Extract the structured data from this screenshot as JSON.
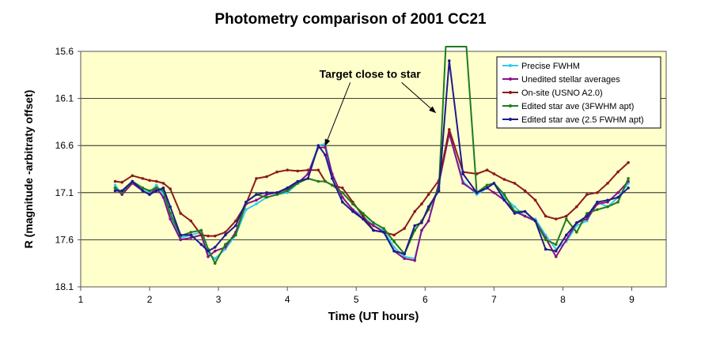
{
  "chart_data": {
    "type": "line",
    "title": "Photometry comparison of 2001 CC21",
    "xlabel": "Time (UT hours)",
    "ylabel": "R (magnitude -arbitraty offset)",
    "xlim": [
      1,
      9.5
    ],
    "ylim": [
      15.6,
      18.1
    ],
    "y_inverted": true,
    "xticks": [
      1,
      2,
      3,
      4,
      5,
      6,
      7,
      8,
      9
    ],
    "yticks": [
      15.6,
      16.1,
      16.6,
      17.1,
      17.6,
      18.1
    ],
    "yticklabels": [
      "15.6",
      "16.1",
      "16.6",
      "17.1",
      "17.6",
      "18.1"
    ],
    "grid": "horizontal",
    "legend_position": "top-right",
    "plot_background": "#ffffcc",
    "annotation": {
      "text": "Target close to star",
      "text_at": [
        5.2,
        15.88
      ],
      "arrows": [
        [
          4.55,
          16.6
        ],
        [
          6.15,
          16.25
        ]
      ]
    },
    "series": [
      {
        "name": "Precise FWHM",
        "color": "#33ccee",
        "x": [
          1.5,
          1.6,
          1.75,
          1.9,
          2.0,
          2.1,
          2.2,
          2.3,
          2.45,
          2.6,
          2.75,
          2.85,
          2.95,
          3.1,
          3.25,
          3.4,
          3.55,
          3.7,
          3.85,
          4.0,
          4.15,
          4.3,
          4.45,
          4.55,
          4.65,
          4.8,
          4.95,
          5.1,
          5.25,
          5.4,
          5.55,
          5.7,
          5.85,
          5.95,
          6.05,
          6.2,
          6.35,
          6.55,
          6.75,
          6.9,
          7.0,
          7.15,
          7.3,
          7.45,
          7.6,
          7.75,
          7.9,
          8.05,
          8.2,
          8.35,
          8.5,
          8.65,
          8.8,
          8.95
        ],
        "y": [
          17.02,
          17.12,
          16.98,
          17.05,
          17.1,
          17.02,
          17.12,
          17.35,
          17.58,
          17.55,
          17.52,
          17.75,
          17.8,
          17.7,
          17.55,
          17.28,
          17.22,
          17.15,
          17.12,
          17.1,
          17.0,
          16.9,
          16.6,
          16.58,
          16.9,
          17.15,
          17.28,
          17.35,
          17.45,
          17.5,
          17.68,
          17.78,
          17.8,
          17.5,
          17.4,
          17.0,
          16.47,
          16.98,
          17.12,
          17.05,
          17.0,
          17.15,
          17.25,
          17.35,
          17.38,
          17.55,
          17.7,
          17.62,
          17.45,
          17.4,
          17.2,
          17.25,
          17.15,
          17.0
        ]
      },
      {
        "name": "Unedited stellar averages",
        "color": "#881188",
        "x": [
          1.5,
          1.6,
          1.75,
          1.9,
          2.0,
          2.1,
          2.2,
          2.3,
          2.45,
          2.6,
          2.75,
          2.85,
          2.95,
          3.1,
          3.25,
          3.4,
          3.55,
          3.7,
          3.85,
          4.0,
          4.15,
          4.3,
          4.45,
          4.55,
          4.65,
          4.8,
          4.95,
          5.1,
          5.25,
          5.4,
          5.55,
          5.7,
          5.85,
          5.95,
          6.05,
          6.2,
          6.35,
          6.55,
          6.75,
          6.9,
          7.0,
          7.15,
          7.3,
          7.45,
          7.6,
          7.75,
          7.9,
          8.05,
          8.2,
          8.35,
          8.5,
          8.65,
          8.8,
          8.95
        ],
        "y": [
          17.05,
          17.12,
          17.0,
          17.08,
          17.12,
          17.05,
          17.15,
          17.38,
          17.6,
          17.58,
          17.55,
          17.78,
          17.72,
          17.68,
          17.52,
          17.22,
          17.18,
          17.12,
          17.1,
          17.06,
          17.0,
          16.9,
          16.62,
          16.62,
          16.9,
          17.15,
          17.28,
          17.38,
          17.45,
          17.52,
          17.72,
          17.8,
          17.82,
          17.5,
          17.4,
          17.0,
          16.47,
          17.0,
          17.1,
          17.05,
          17.1,
          17.18,
          17.3,
          17.35,
          17.4,
          17.58,
          17.78,
          17.6,
          17.42,
          17.38,
          17.22,
          17.2,
          17.1,
          16.98
        ]
      },
      {
        "name": "On-site (USNO A2.0)",
        "color": "#8b1a1a",
        "x": [
          1.5,
          1.6,
          1.75,
          1.9,
          2.0,
          2.1,
          2.2,
          2.3,
          2.45,
          2.6,
          2.75,
          2.85,
          2.95,
          3.1,
          3.25,
          3.4,
          3.55,
          3.7,
          3.85,
          4.0,
          4.15,
          4.3,
          4.45,
          4.55,
          4.65,
          4.8,
          4.95,
          5.1,
          5.25,
          5.4,
          5.55,
          5.7,
          5.85,
          5.95,
          6.05,
          6.2,
          6.35,
          6.55,
          6.75,
          6.9,
          7.0,
          7.15,
          7.3,
          7.45,
          7.6,
          7.75,
          7.9,
          8.05,
          8.2,
          8.35,
          8.5,
          8.65,
          8.8,
          8.95
        ],
        "y": [
          16.98,
          16.99,
          16.92,
          16.95,
          16.97,
          16.98,
          17.0,
          17.06,
          17.32,
          17.4,
          17.55,
          17.56,
          17.56,
          17.52,
          17.4,
          17.22,
          16.95,
          16.93,
          16.88,
          16.86,
          16.87,
          16.86,
          16.86,
          16.98,
          17.02,
          17.05,
          17.2,
          17.35,
          17.5,
          17.52,
          17.55,
          17.48,
          17.3,
          17.22,
          17.12,
          16.97,
          16.43,
          16.88,
          16.9,
          16.86,
          16.9,
          16.96,
          17.0,
          17.08,
          17.18,
          17.35,
          17.38,
          17.35,
          17.25,
          17.12,
          17.1,
          17.0,
          16.88,
          16.78
        ]
      },
      {
        "name": "Edited star ave (3FWHM apt)",
        "color": "#1e7b1e",
        "x": [
          1.5,
          1.6,
          1.75,
          1.9,
          2.0,
          2.1,
          2.2,
          2.3,
          2.45,
          2.6,
          2.75,
          2.85,
          2.95,
          3.1,
          3.25,
          3.4,
          3.55,
          3.7,
          3.85,
          4.0,
          4.15,
          4.3,
          4.45,
          4.55,
          4.65,
          4.8,
          4.95,
          5.1,
          5.25,
          5.4,
          5.55,
          5.7,
          5.85,
          5.95,
          6.05,
          6.2,
          6.3,
          6.6,
          6.75,
          6.9,
          7.0,
          7.15,
          7.3,
          7.45,
          7.6,
          7.75,
          7.9,
          8.05,
          8.2,
          8.35,
          8.5,
          8.65,
          8.8,
          8.95
        ],
        "y": [
          17.05,
          17.1,
          16.98,
          17.05,
          17.08,
          17.05,
          17.08,
          17.32,
          17.56,
          17.52,
          17.5,
          17.7,
          17.85,
          17.65,
          17.55,
          17.2,
          17.12,
          17.15,
          17.12,
          17.08,
          17.0,
          16.95,
          16.98,
          16.98,
          17.02,
          17.1,
          17.22,
          17.32,
          17.42,
          17.48,
          17.62,
          17.75,
          17.5,
          17.4,
          17.28,
          17.05,
          15.55,
          15.55,
          17.1,
          17.02,
          17.0,
          17.12,
          17.3,
          17.3,
          17.4,
          17.6,
          17.65,
          17.38,
          17.52,
          17.32,
          17.28,
          17.25,
          17.2,
          16.95
        ]
      },
      {
        "name": "Edited star ave (2.5 FWHM apt)",
        "color": "#1c1c8c",
        "x": [
          1.5,
          1.6,
          1.75,
          1.9,
          2.0,
          2.1,
          2.2,
          2.3,
          2.45,
          2.6,
          2.75,
          2.85,
          2.95,
          3.1,
          3.25,
          3.4,
          3.55,
          3.7,
          3.85,
          4.0,
          4.15,
          4.3,
          4.45,
          4.55,
          4.65,
          4.8,
          4.95,
          5.1,
          5.25,
          5.4,
          5.55,
          5.7,
          5.85,
          5.95,
          6.05,
          6.2,
          6.35,
          6.55,
          6.75,
          6.9,
          7.0,
          7.15,
          7.3,
          7.45,
          7.6,
          7.75,
          7.9,
          8.05,
          8.2,
          8.35,
          8.5,
          8.65,
          8.8,
          8.95
        ],
        "y": [
          17.08,
          17.08,
          16.98,
          17.08,
          17.12,
          17.08,
          17.05,
          17.25,
          17.55,
          17.55,
          17.65,
          17.72,
          17.68,
          17.55,
          17.45,
          17.2,
          17.12,
          17.1,
          17.1,
          17.05,
          16.98,
          16.95,
          16.6,
          16.7,
          16.95,
          17.2,
          17.3,
          17.38,
          17.5,
          17.52,
          17.72,
          17.75,
          17.45,
          17.42,
          17.25,
          17.08,
          15.7,
          16.9,
          17.1,
          17.05,
          17.0,
          17.18,
          17.32,
          17.3,
          17.4,
          17.7,
          17.72,
          17.55,
          17.42,
          17.35,
          17.2,
          17.18,
          17.15,
          17.05
        ]
      }
    ]
  }
}
